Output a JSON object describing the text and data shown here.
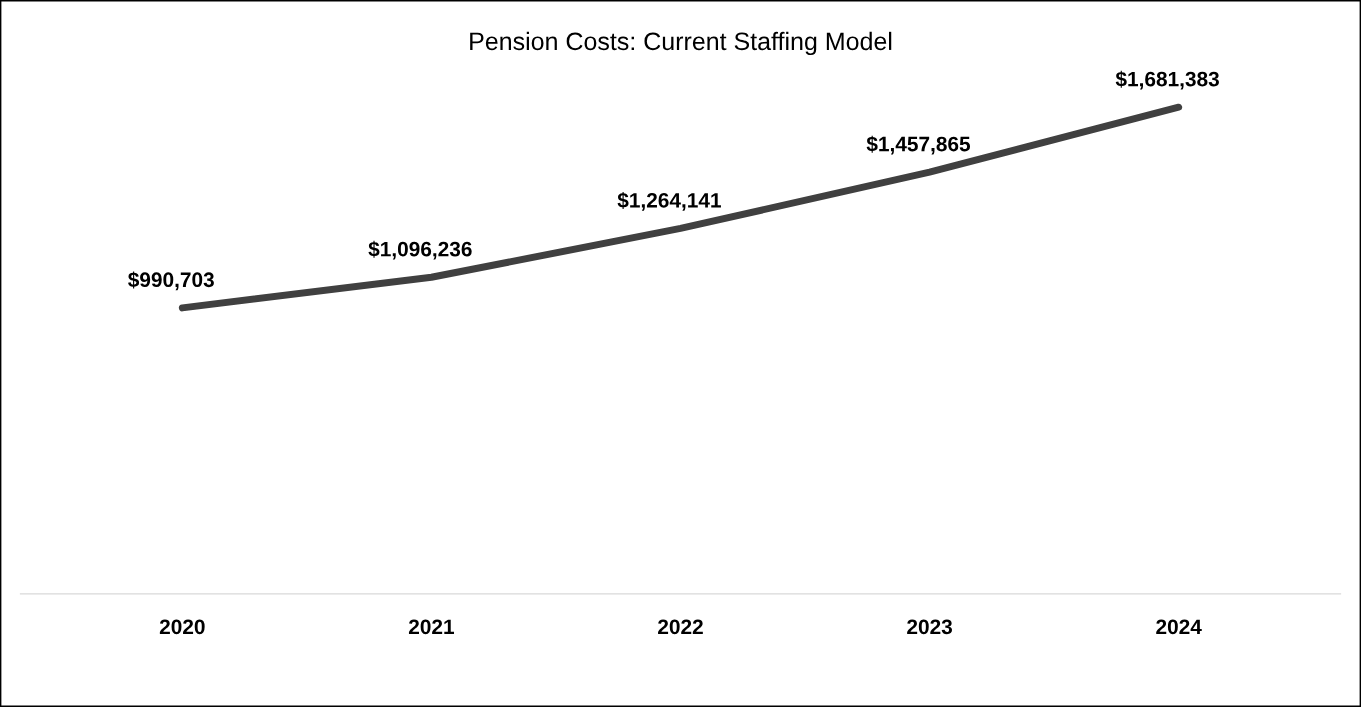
{
  "chart_data": {
    "type": "line",
    "title": "Pension Costs: Current Staffing Model",
    "categories": [
      "2020",
      "2021",
      "2022",
      "2023",
      "2024"
    ],
    "series": [
      {
        "color": "#404040",
        "values": [
          990703,
          1096236,
          1264141,
          1457865,
          1681383
        ],
        "value_labels": [
          "$990,703",
          "$1,096,236",
          "$1,264,141",
          "$1,457,865",
          "$1,681,383"
        ]
      }
    ],
    "tick_labels": "x",
    "marker": "none",
    "line_style": "solid"
  }
}
